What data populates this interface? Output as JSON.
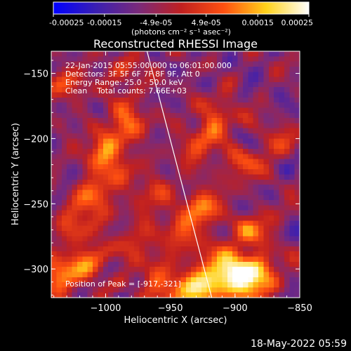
{
  "chart_data": {
    "type": "heatmap",
    "title": "Reconstructed RHESSI Image",
    "xlabel": "Heliocentric X (arcsec)",
    "ylabel": "Heliocentric Y (arcsec)",
    "xlim": [
      -1042,
      -850
    ],
    "ylim": [
      -322,
      -133
    ],
    "x_ticks": [
      -1000,
      -950,
      -900,
      -850
    ],
    "x_tick_labels": [
      "−1000",
      "−950",
      "−900",
      "−850"
    ],
    "y_ticks": [
      -150,
      -200,
      -250,
      -300
    ],
    "y_tick_labels": [
      "−150",
      "−200",
      "−250",
      "−300"
    ],
    "colorbar": {
      "min": -0.00025,
      "max": 0.00025,
      "ticks": [
        -0.00025,
        -0.00015,
        -4.9e-05,
        4.9e-05,
        0.00015,
        0.00025
      ],
      "tick_labels": [
        "-0.00025",
        "-0.00015",
        "-4.9e-05",
        "4.9e-05",
        "0.00015",
        "0.00025"
      ],
      "unit_label": "(photons cm⁻² s⁻¹ asec⁻²)",
      "colors": [
        "#0000ff",
        "#3a1fb2",
        "#7a2a7a",
        "#c02020",
        "#ff5010",
        "#ffd21a",
        "#ffffff"
      ]
    },
    "limb": {
      "x": [
        -968,
        -918
      ],
      "y": [
        -133,
        -322
      ],
      "color": "#ffffff"
    },
    "annotations": {
      "time_range": "22-Jan-2015 05:55:00.000 to 06:01:00.000",
      "detectors": "Detectors: 3F 5F 6F 7F 8F 9F, Att 0",
      "energy_range": "Energy Range: 25.0 - 50.0 keV",
      "clean_counts": "Clean    Total counts: 7.66E+03",
      "peak_position": "Position of Peak = [-917,-321]"
    },
    "blobs": [
      {
        "x": -905,
        "y": -300,
        "value": 0.00022
      },
      {
        "x": -925,
        "y": -315,
        "value": 0.00024
      },
      {
        "x": -890,
        "y": -310,
        "value": 0.0002
      },
      {
        "x": -955,
        "y": -315,
        "value": 0.00015
      },
      {
        "x": -1035,
        "y": -305,
        "value": 0.00018
      },
      {
        "x": -1020,
        "y": -265,
        "value": 0.00013
      },
      {
        "x": -1000,
        "y": -215,
        "value": 0.00016
      },
      {
        "x": -985,
        "y": -190,
        "value": 0.00015
      },
      {
        "x": -1005,
        "y": -240,
        "value": 0.00011
      },
      {
        "x": -915,
        "y": -185,
        "value": 0.00013
      },
      {
        "x": -925,
        "y": -255,
        "value": 0.00014
      },
      {
        "x": -940,
        "y": -275,
        "value": 0.00011
      },
      {
        "x": -885,
        "y": -270,
        "value": 0.00011
      },
      {
        "x": -880,
        "y": -300,
        "value": 9e-05
      },
      {
        "x": -965,
        "y": -245,
        "value": 0.0001
      },
      {
        "x": -1030,
        "y": -160,
        "value": 9e-05
      },
      {
        "x": -985,
        "y": -150,
        "value": 8e-05
      },
      {
        "x": -930,
        "y": -210,
        "value": 9e-05
      },
      {
        "x": -870,
        "y": -205,
        "value": 7e-05
      },
      {
        "x": -895,
        "y": -220,
        "value": 8e-05
      },
      {
        "x": -975,
        "y": -285,
        "value": 9e-05
      },
      {
        "x": -1010,
        "y": -295,
        "value": 0.0001
      }
    ]
  },
  "footer": {
    "datestamp": "18-May-2022 05:59"
  }
}
